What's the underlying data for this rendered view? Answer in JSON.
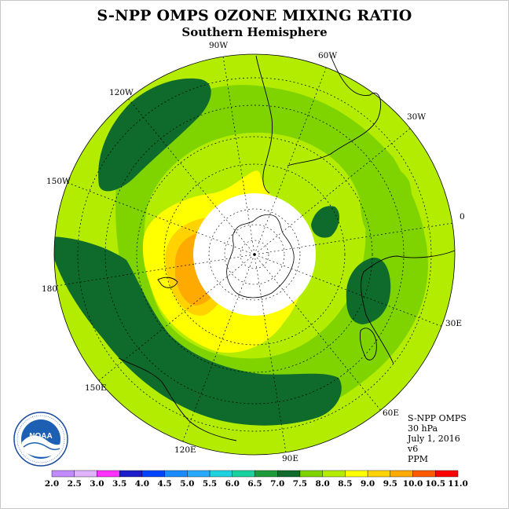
{
  "header": {
    "title": "S-NPP OMPS OZONE MIXING RATIO",
    "subtitle": "Southern Hemisphere"
  },
  "map": {
    "projection": "south polar stereographic",
    "longitude_labels": [
      "90W",
      "60W",
      "30W",
      "0",
      "30E",
      "60E",
      "90E",
      "120E",
      "150E",
      "180",
      "150W",
      "120W"
    ],
    "level_shown_by_colour": "ozone mixing ratio"
  },
  "info": {
    "instrument": "S-NPP OMPS",
    "level": "30 hPa",
    "date": "July 1, 2016",
    "version": "v6",
    "units": "PPM"
  },
  "logo": {
    "text": "NOAA"
  },
  "colorbar": {
    "ticks": [
      "2.0",
      "2.5",
      "3.0",
      "3.5",
      "4.0",
      "4.5",
      "5.0",
      "5.5",
      "6.0",
      "6.5",
      "7.0",
      "7.5",
      "8.0",
      "8.5",
      "9.0",
      "9.5",
      "10.0",
      "10.5",
      "11.0"
    ],
    "colors": [
      "#c28aff",
      "#dfb3ff",
      "#ff33ff",
      "#1c1cc8",
      "#0044ff",
      "#1a8cff",
      "#2aaaff",
      "#1ed2e0",
      "#19d2a0",
      "#1e9b3c",
      "#0f6b2b",
      "#7fd400",
      "#b4ec00",
      "#ffff00",
      "#ffd200",
      "#ffaa00",
      "#ff5a00",
      "#ff0000",
      "#7a4a2a"
    ]
  },
  "colors": {
    "dark_green": "#0f6b2b",
    "green": "#7fd400",
    "yellow_green": "#b4ec00",
    "yellow": "#ffff00",
    "gold": "#ffd200",
    "orange": "#ffaa00"
  }
}
